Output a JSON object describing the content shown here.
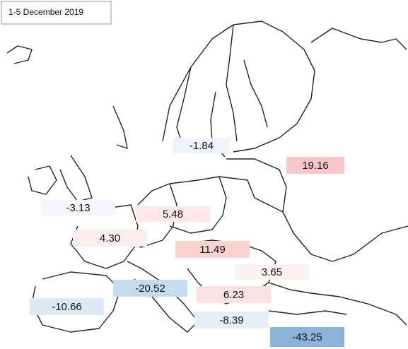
{
  "title": "1-5 December 2019",
  "labels": [
    {
      "text": "-1.84",
      "color": "#eef4fa"
    },
    {
      "text": "19.16",
      "color": "#f8c8c8"
    },
    {
      "text": "-3.13",
      "color": "#f3f7fb"
    },
    {
      "text": "5.48",
      "color": "#fde8e8"
    },
    {
      "text": "4.30",
      "color": "#fdeeee"
    },
    {
      "text": "11.49",
      "color": "#f9d2d2"
    },
    {
      "text": "3.65",
      "color": "#fdf2f2"
    },
    {
      "text": "-20.52",
      "color": "#c5dbee"
    },
    {
      "text": "6.23",
      "color": "#fbe1e1"
    },
    {
      "text": "-10.66",
      "color": "#ddeaf6"
    },
    {
      "text": "-8.39",
      "color": "#e6eff8"
    },
    {
      "text": "-43.25",
      "color": "#8eb3d9"
    }
  ]
}
